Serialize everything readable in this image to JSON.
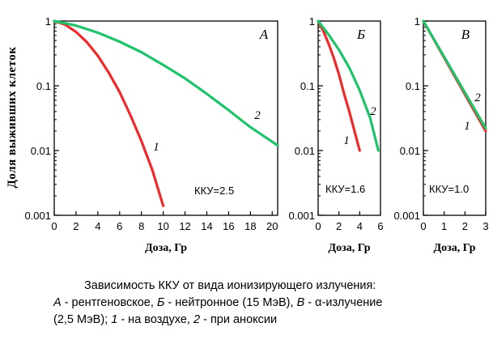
{
  "figure": {
    "y_axis_label": "Доля выживших клеток",
    "caption": {
      "line1": "Зависимость ККУ от вида ионизирующего излучения:",
      "line2": [
        {
          "text": "А",
          "italic": true
        },
        {
          "text": " - рентгеновское, ",
          "italic": false
        },
        {
          "text": "Б",
          "italic": true
        },
        {
          "text": " - нейтронное (15 МэВ), ",
          "italic": false
        },
        {
          "text": "В",
          "italic": true
        },
        {
          "text": " - α-излучение",
          "italic": false
        }
      ],
      "line3": [
        {
          "text": "(2,5 МэВ);  ",
          "italic": false
        },
        {
          "text": "1",
          "italic": true
        },
        {
          "text": " - на воздухе, ",
          "italic": false
        },
        {
          "text": "2",
          "italic": true
        },
        {
          "text": " - при аноксии",
          "italic": false
        }
      ]
    }
  },
  "chart_data": [
    {
      "type": "line",
      "panel": "А",
      "xlabel": "Доза, Гр",
      "ylabel": "Доля выживших клеток",
      "yscale": "log",
      "xlim": [
        0,
        20.5
      ],
      "ylim": [
        0.001,
        1
      ],
      "x_ticks": [
        0,
        2,
        4,
        6,
        8,
        10,
        12,
        14,
        16,
        18,
        20
      ],
      "y_ticks": [
        0.001,
        0.01,
        0.1,
        1
      ],
      "y_tick_labels": [
        "0.001",
        "0.01",
        "0.1",
        "1"
      ],
      "annotation": "ККУ=2.5",
      "series": [
        {
          "label": "1",
          "color": "#ee2a2a",
          "x": [
            0,
            1,
            2,
            3,
            4,
            5,
            6,
            7,
            8,
            9,
            10
          ],
          "y": [
            1,
            0.88,
            0.68,
            0.47,
            0.29,
            0.16,
            0.08,
            0.035,
            0.014,
            0.005,
            0.0014
          ]
        },
        {
          "label": "2",
          "color": "#1ec36a",
          "x": [
            0,
            2,
            4,
            6,
            8,
            10,
            12,
            14,
            16,
            18,
            20.5
          ],
          "y": [
            1,
            0.85,
            0.66,
            0.48,
            0.33,
            0.21,
            0.13,
            0.075,
            0.042,
            0.023,
            0.012
          ]
        }
      ]
    },
    {
      "type": "line",
      "panel": "Б",
      "xlabel": "Доза, Гр",
      "yscale": "log",
      "xlim": [
        0,
        6
      ],
      "ylim": [
        0.001,
        1
      ],
      "x_ticks": [
        0,
        2,
        4,
        6
      ],
      "y_ticks": [
        0.001,
        0.01,
        0.1,
        1
      ],
      "y_tick_labels": [
        "0.001",
        "0.01",
        "0.1",
        "1"
      ],
      "annotation": "ККУ=1.6",
      "series": [
        {
          "label": "1",
          "color": "#ee2a2a",
          "x": [
            0,
            0.5,
            1,
            1.5,
            2,
            2.5,
            3,
            3.5,
            4
          ],
          "y": [
            1,
            0.7,
            0.45,
            0.27,
            0.15,
            0.075,
            0.04,
            0.02,
            0.01
          ]
        },
        {
          "label": "2",
          "color": "#1ec36a",
          "x": [
            0,
            1,
            2,
            3,
            4,
            5,
            5.8
          ],
          "y": [
            1,
            0.62,
            0.36,
            0.19,
            0.085,
            0.032,
            0.01
          ]
        }
      ]
    },
    {
      "type": "line",
      "panel": "В",
      "xlabel": "Доза, Гр",
      "yscale": "log",
      "xlim": [
        0,
        3
      ],
      "ylim": [
        0.001,
        1
      ],
      "x_ticks": [
        0,
        1,
        2,
        3
      ],
      "y_ticks": [
        0.001,
        0.01,
        0.1,
        1
      ],
      "y_tick_labels": [
        "0.001",
        "0.01",
        "0.1",
        "1"
      ],
      "annotation": "ККУ=1.0",
      "series": [
        {
          "label": "1",
          "color": "#ee2a2a",
          "x": [
            0,
            3
          ],
          "y": [
            1,
            0.02
          ]
        },
        {
          "label": "2",
          "color": "#1ec36a",
          "x": [
            0,
            3
          ],
          "y": [
            1,
            0.022
          ]
        }
      ]
    }
  ]
}
